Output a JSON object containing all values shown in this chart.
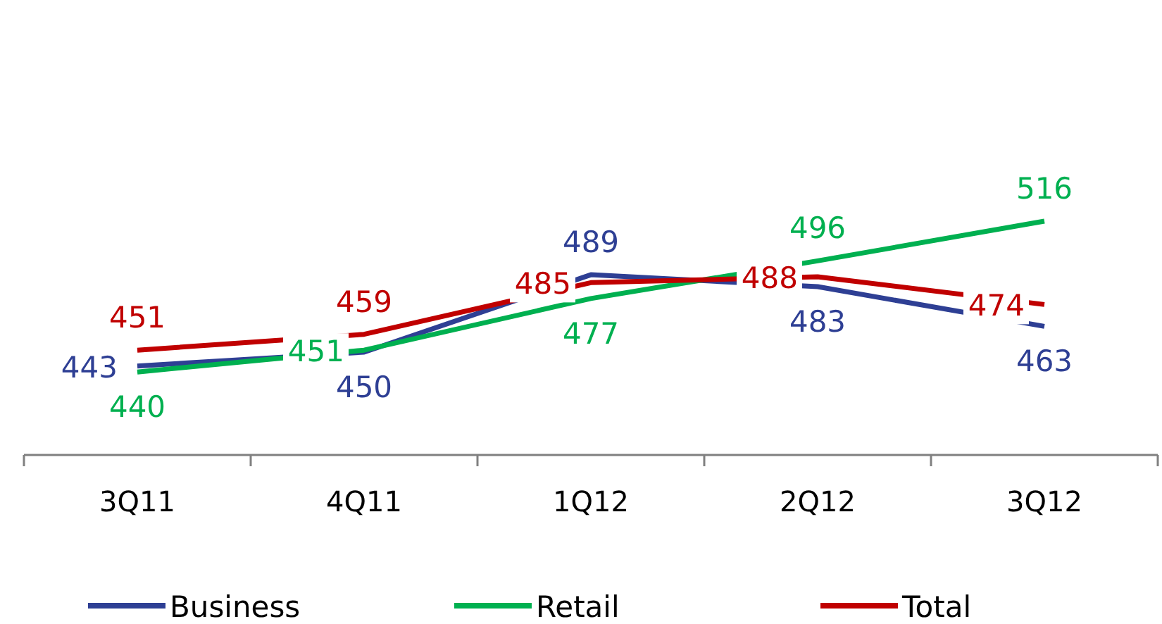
{
  "chart_data": {
    "type": "line",
    "categories": [
      "3Q11",
      "4Q11",
      "1Q12",
      "2Q12",
      "3Q12"
    ],
    "series": [
      {
        "name": "Business",
        "color": "#2e3f94",
        "values": [
          443,
          450,
          489,
          483,
          463
        ]
      },
      {
        "name": "Retail",
        "color": "#00b050",
        "values": [
          440,
          451,
          477,
          496,
          516
        ]
      },
      {
        "name": "Total",
        "color": "#c00000",
        "values": [
          451,
          459,
          485,
          488,
          474
        ]
      }
    ],
    "data_labels": true,
    "legend": "bottom",
    "marker": "none",
    "line_style": "solid"
  }
}
